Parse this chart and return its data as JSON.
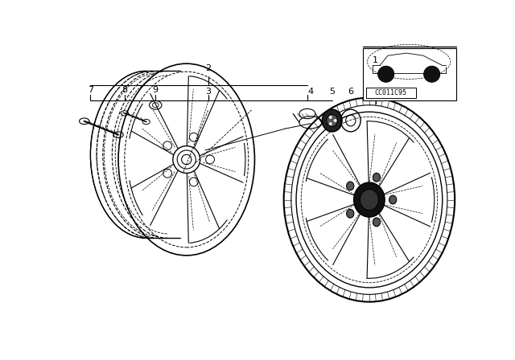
{
  "bg_color": "#ffffff",
  "line_color": "#000000",
  "fig_width": 6.4,
  "fig_height": 4.48,
  "part_code": "CC011C95"
}
